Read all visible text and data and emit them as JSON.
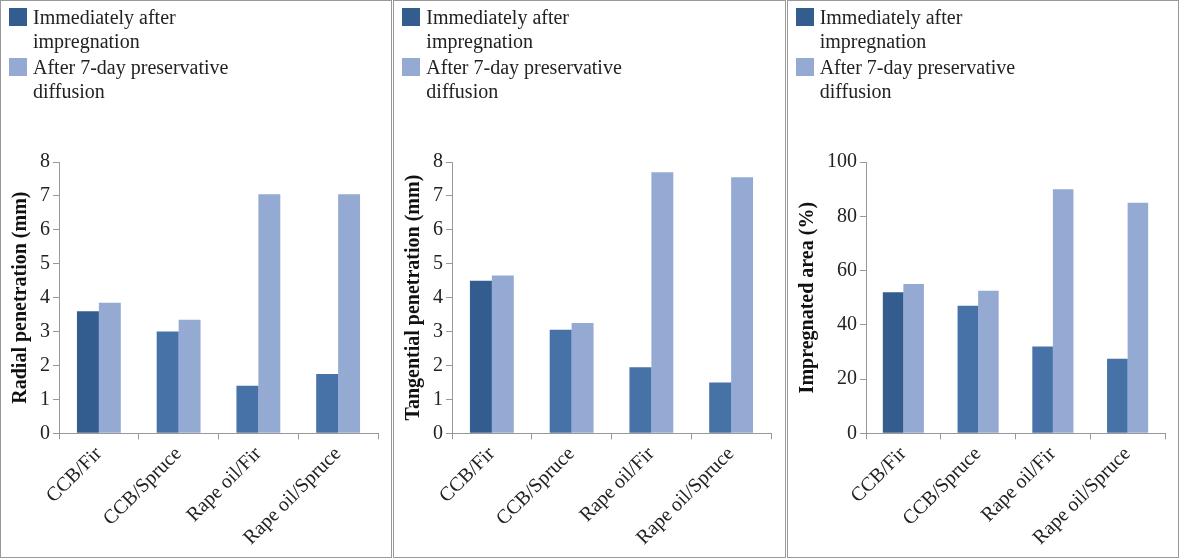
{
  "chart_data": [
    {
      "type": "bar",
      "ylabel": "Radial penetration (mm)",
      "categories": [
        "CCB/Fir",
        "CCB/Spruce",
        "Rape oil/Fir",
        "Rape oil/Spruce"
      ],
      "ylim": [
        0,
        8
      ],
      "yticks": [
        0,
        1,
        2,
        3,
        4,
        5,
        6,
        7,
        8
      ],
      "grid": false,
      "legend": "top left",
      "series": [
        {
          "name": "Immediately after impregnation",
          "color": "#345d8f",
          "colors": [
            "#345d8f",
            "#4672a8",
            "#4672a8",
            "#4672a8"
          ],
          "values": [
            3.6,
            3.0,
            1.4,
            1.75
          ]
        },
        {
          "name": "After 7-day preservative diffusion",
          "color": "#95aad3",
          "values": [
            3.85,
            3.35,
            7.05,
            7.05
          ]
        }
      ]
    },
    {
      "type": "bar",
      "ylabel": "Tangential penetration (mm)",
      "categories": [
        "CCB/Fir",
        "CCB/Spruce",
        "Rape oil/Fir",
        "Rape oil/Spruce"
      ],
      "ylim": [
        0,
        8
      ],
      "yticks": [
        0,
        1,
        2,
        3,
        4,
        5,
        6,
        7,
        8
      ],
      "grid": false,
      "legend": "top left",
      "series": [
        {
          "name": "Immediately after impregnation",
          "color": "#345d8f",
          "colors": [
            "#345d8f",
            "#4672a8",
            "#4672a8",
            "#4672a8"
          ],
          "values": [
            4.5,
            3.05,
            1.95,
            1.5
          ]
        },
        {
          "name": "After 7-day preservative diffusion",
          "color": "#95aad3",
          "values": [
            4.65,
            3.25,
            7.7,
            7.55
          ]
        }
      ]
    },
    {
      "type": "bar",
      "ylabel": "Impregnated area (%)",
      "categories": [
        "CCB/Fir",
        "CCB/Spruce",
        "Rape oil/Fir",
        "Rape oil/Spruce"
      ],
      "ylim": [
        0,
        100
      ],
      "yticks": [
        0,
        20,
        40,
        60,
        80,
        100
      ],
      "grid": false,
      "legend": "top left",
      "series": [
        {
          "name": "Immediately after impregnation",
          "color": "#345d8f",
          "colors": [
            "#345d8f",
            "#4672a8",
            "#4672a8",
            "#4672a8"
          ],
          "values": [
            52,
            47,
            32,
            27.5
          ]
        },
        {
          "name": "After 7-day preservative diffusion",
          "color": "#95aad3",
          "values": [
            55,
            52.5,
            90,
            85
          ]
        }
      ]
    }
  ]
}
